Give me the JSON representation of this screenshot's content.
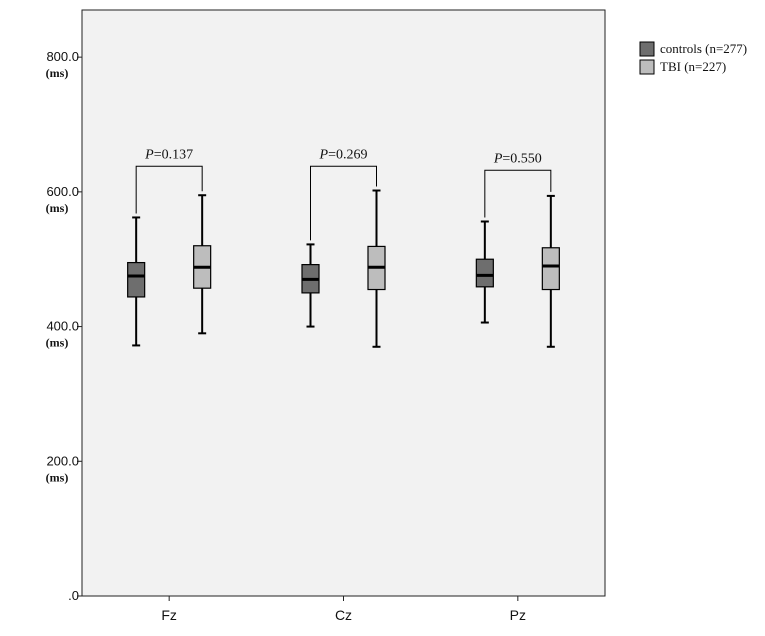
{
  "chart_data": {
    "type": "box",
    "categories": [
      "Fz",
      "Cz",
      "Pz"
    ],
    "ylim": [
      0,
      870
    ],
    "yticks": [
      {
        "value": 0,
        "label": ".0",
        "unit": ""
      },
      {
        "value": 200,
        "label": "200.0",
        "unit": "(ms)"
      },
      {
        "value": 400,
        "label": "400.0",
        "unit": "(ms)"
      },
      {
        "value": 600,
        "label": "600.0",
        "unit": "(ms)"
      },
      {
        "value": 800,
        "label": "800.0",
        "unit": "(ms)"
      }
    ],
    "series": [
      {
        "name": "controls (n=277)",
        "color": "#6e6e6e",
        "boxes": [
          {
            "min": 372,
            "q1": 444,
            "median": 475,
            "q3": 495,
            "max": 562
          },
          {
            "min": 400,
            "q1": 450,
            "median": 470,
            "q3": 492,
            "max": 522
          },
          {
            "min": 406,
            "q1": 459,
            "median": 476,
            "q3": 500,
            "max": 556
          }
        ]
      },
      {
        "name": "TBI (n=227)",
        "color": "#bdbdbd",
        "boxes": [
          {
            "min": 390,
            "q1": 457,
            "median": 488,
            "q3": 520,
            "max": 595
          },
          {
            "min": 370,
            "q1": 455,
            "median": 488,
            "q3": 519,
            "max": 602
          },
          {
            "min": 370,
            "q1": 455,
            "median": 490,
            "q3": 517,
            "max": 594
          }
        ]
      }
    ],
    "comparisons": [
      {
        "category": "Fz",
        "label_italic": "P",
        "label_rest": "=0.137",
        "bracket_top": 638
      },
      {
        "category": "Cz",
        "label_italic": "P",
        "label_rest": "=0.269",
        "bracket_top": 638
      },
      {
        "category": "Pz",
        "label_italic": "P",
        "label_rest": "=0.550",
        "bracket_top": 632
      }
    ],
    "legend_position": "top-right",
    "grid": false,
    "background": "#f2f2f2"
  }
}
